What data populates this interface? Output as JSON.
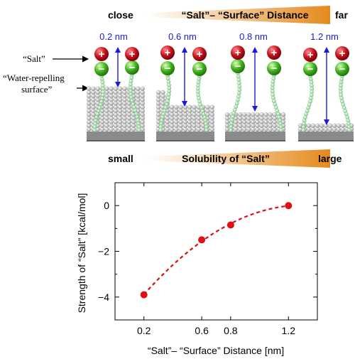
{
  "distance_banner": {
    "left_label": "close",
    "title": "“Salt”– “Surface” Distance",
    "right_label": "far"
  },
  "distance_labels": [
    "0.2 nm",
    "0.6 nm",
    "0.8 nm",
    "1.2 nm"
  ],
  "side_labels": {
    "salt": "“Salt”",
    "surface_line1": "“Water-repelling",
    "surface_line2": "surface”"
  },
  "ion_symbols": {
    "cation": "+",
    "anion": "−"
  },
  "solubility_banner": {
    "left_label": "small",
    "title": "Solubility of “Salt”",
    "right_label": "large"
  },
  "colors": {
    "banner_gradient_start": "#ffffff",
    "banner_gradient_end": "#e58a1c",
    "cation": "#c4101a",
    "anion": "#3fb11c",
    "arrow": "#1a1adb",
    "data_series": "#dd1111"
  },
  "chart_data": {
    "type": "scatter",
    "x": [
      0.2,
      0.6,
      0.8,
      1.2
    ],
    "y": [
      -3.9,
      -1.5,
      -0.85,
      0.0
    ],
    "xlabel": "“Salt”– “Surface” Distance [nm]",
    "ylabel": "Strength of “Salt” [kcal/mol]",
    "xlim": [
      0.0,
      1.4
    ],
    "ylim": [
      -5,
      1
    ],
    "xticks": [
      0.2,
      0.6,
      0.8,
      1.2
    ],
    "xtick_labels": [
      "0.2",
      "0.6",
      "0.8",
      "1.2"
    ],
    "yticks": [
      0,
      -2,
      -4
    ],
    "ytick_labels": [
      "0",
      "−2",
      "−4"
    ],
    "trend_line": "dashed",
    "grid": false
  }
}
